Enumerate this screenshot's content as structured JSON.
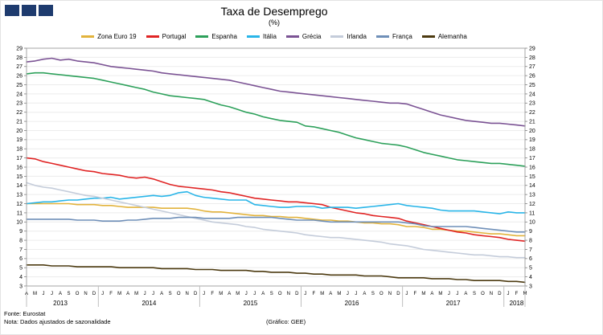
{
  "header": {
    "logo_squares": 3,
    "logo_color": "#1E3B6E"
  },
  "footer": {
    "source": "Fonte: Eurostat",
    "note": "Nota: Dados ajustados de sazonalidade",
    "credit": "(Gráfico: GEE)"
  },
  "chart_data": {
    "type": "line",
    "title": "Taxa de Desemprego",
    "subtitle": "(%)",
    "xlabel": "",
    "ylabel": "",
    "ylim": [
      3,
      29
    ],
    "ytick_step": 1,
    "grid": true,
    "legend_position": "top",
    "x_groups": [
      {
        "year": "2013",
        "months": [
          "A",
          "M",
          "J",
          "J",
          "A",
          "S",
          "O",
          "N",
          "D"
        ]
      },
      {
        "year": "2014",
        "months": [
          "J",
          "F",
          "M",
          "A",
          "M",
          "J",
          "J",
          "A",
          "S",
          "O",
          "N",
          "D"
        ]
      },
      {
        "year": "2015",
        "months": [
          "J",
          "F",
          "M",
          "A",
          "M",
          "J",
          "J",
          "A",
          "S",
          "O",
          "N",
          "D"
        ]
      },
      {
        "year": "2016",
        "months": [
          "J",
          "F",
          "M",
          "A",
          "M",
          "J",
          "J",
          "A",
          "S",
          "O",
          "N",
          "D"
        ]
      },
      {
        "year": "2017",
        "months": [
          "J",
          "F",
          "M",
          "A",
          "M",
          "J",
          "J",
          "A",
          "S",
          "O",
          "N",
          "D"
        ]
      },
      {
        "year": "2018",
        "months": [
          "J",
          "F",
          "M"
        ]
      }
    ],
    "series": [
      {
        "name": "Zona Euro 19",
        "color": "#E2B33C",
        "values": [
          12.0,
          12.0,
          12.0,
          12.0,
          12.0,
          12.0,
          11.9,
          11.9,
          11.9,
          11.8,
          11.8,
          11.7,
          11.6,
          11.6,
          11.6,
          11.6,
          11.5,
          11.5,
          11.5,
          11.5,
          11.4,
          11.2,
          11.1,
          11.1,
          11.0,
          10.9,
          10.8,
          10.7,
          10.7,
          10.6,
          10.6,
          10.5,
          10.5,
          10.4,
          10.3,
          10.2,
          10.2,
          10.1,
          10.1,
          10.0,
          9.9,
          9.9,
          9.8,
          9.8,
          9.7,
          9.5,
          9.5,
          9.4,
          9.2,
          9.2,
          9.1,
          9.0,
          9.0,
          8.9,
          8.8,
          8.7,
          8.7,
          8.6,
          8.5,
          8.5
        ]
      },
      {
        "name": "Portugal",
        "color": "#E02424",
        "values": [
          17.0,
          16.9,
          16.6,
          16.4,
          16.2,
          16.0,
          15.8,
          15.6,
          15.5,
          15.3,
          15.2,
          15.1,
          14.9,
          14.8,
          14.9,
          14.7,
          14.4,
          14.1,
          13.9,
          13.8,
          13.7,
          13.6,
          13.5,
          13.3,
          13.2,
          13.0,
          12.8,
          12.6,
          12.5,
          12.4,
          12.3,
          12.2,
          12.2,
          12.1,
          12.0,
          11.9,
          11.6,
          11.4,
          11.2,
          11.0,
          10.9,
          10.7,
          10.6,
          10.5,
          10.4,
          10.1,
          9.9,
          9.7,
          9.5,
          9.3,
          9.1,
          8.9,
          8.8,
          8.6,
          8.5,
          8.4,
          8.3,
          8.1,
          8.0,
          7.9
        ]
      },
      {
        "name": "Espanha",
        "color": "#2CA05A",
        "values": [
          26.2,
          26.3,
          26.3,
          26.2,
          26.1,
          26.0,
          25.9,
          25.8,
          25.7,
          25.5,
          25.3,
          25.1,
          24.9,
          24.7,
          24.5,
          24.2,
          24.0,
          23.8,
          23.7,
          23.6,
          23.5,
          23.4,
          23.1,
          22.8,
          22.6,
          22.3,
          22.0,
          21.8,
          21.5,
          21.3,
          21.1,
          21.0,
          20.9,
          20.5,
          20.4,
          20.2,
          20.0,
          19.8,
          19.5,
          19.2,
          19.0,
          18.8,
          18.6,
          18.5,
          18.4,
          18.2,
          17.9,
          17.6,
          17.4,
          17.2,
          17.0,
          16.8,
          16.7,
          16.6,
          16.5,
          16.4,
          16.4,
          16.3,
          16.2,
          16.1
        ]
      },
      {
        "name": "Itália",
        "color": "#29B5E8",
        "values": [
          12.0,
          12.1,
          12.2,
          12.2,
          12.3,
          12.4,
          12.4,
          12.5,
          12.6,
          12.6,
          12.7,
          12.5,
          12.6,
          12.7,
          12.8,
          12.9,
          12.8,
          12.9,
          13.2,
          13.3,
          12.9,
          12.7,
          12.6,
          12.5,
          12.4,
          12.4,
          12.4,
          11.9,
          11.8,
          11.7,
          11.6,
          11.6,
          11.7,
          11.7,
          11.7,
          11.5,
          11.6,
          11.6,
          11.6,
          11.5,
          11.6,
          11.7,
          11.8,
          11.9,
          12.0,
          11.8,
          11.7,
          11.6,
          11.5,
          11.3,
          11.2,
          11.2,
          11.2,
          11.2,
          11.1,
          11.0,
          10.9,
          11.1,
          11.0,
          11.0
        ]
      },
      {
        "name": "Grécia",
        "color": "#7B5394",
        "values": [
          27.5,
          27.6,
          27.8,
          27.9,
          27.7,
          27.8,
          27.6,
          27.5,
          27.4,
          27.2,
          27.0,
          26.9,
          26.8,
          26.7,
          26.6,
          26.5,
          26.3,
          26.2,
          26.1,
          26.0,
          25.9,
          25.8,
          25.7,
          25.6,
          25.5,
          25.3,
          25.1,
          24.9,
          24.7,
          24.5,
          24.3,
          24.2,
          24.1,
          24.0,
          23.9,
          23.8,
          23.7,
          23.6,
          23.5,
          23.4,
          23.3,
          23.2,
          23.1,
          23.0,
          23.0,
          22.9,
          22.6,
          22.3,
          22.0,
          21.7,
          21.5,
          21.3,
          21.1,
          21.0,
          20.9,
          20.8,
          20.8,
          20.7,
          20.6,
          20.5
        ]
      },
      {
        "name": "Irlanda",
        "color": "#C4CCDA",
        "values": [
          14.3,
          14.0,
          13.8,
          13.7,
          13.5,
          13.3,
          13.1,
          12.9,
          12.8,
          12.6,
          12.4,
          12.2,
          12.0,
          11.8,
          11.6,
          11.4,
          11.2,
          11.0,
          10.8,
          10.6,
          10.4,
          10.2,
          10.0,
          9.9,
          9.8,
          9.7,
          9.5,
          9.4,
          9.2,
          9.1,
          9.0,
          8.9,
          8.8,
          8.6,
          8.5,
          8.4,
          8.3,
          8.3,
          8.2,
          8.1,
          8.0,
          7.9,
          7.8,
          7.6,
          7.5,
          7.4,
          7.2,
          7.0,
          6.9,
          6.8,
          6.7,
          6.6,
          6.5,
          6.4,
          6.4,
          6.3,
          6.2,
          6.2,
          6.1,
          6.1
        ]
      },
      {
        "name": "França",
        "color": "#6F8FB8",
        "values": [
          10.3,
          10.3,
          10.3,
          10.3,
          10.3,
          10.3,
          10.2,
          10.2,
          10.2,
          10.1,
          10.1,
          10.1,
          10.2,
          10.2,
          10.3,
          10.4,
          10.4,
          10.4,
          10.5,
          10.5,
          10.5,
          10.4,
          10.4,
          10.4,
          10.4,
          10.5,
          10.5,
          10.5,
          10.5,
          10.5,
          10.4,
          10.3,
          10.2,
          10.2,
          10.2,
          10.1,
          10.0,
          10.0,
          10.0,
          10.0,
          10.0,
          10.0,
          10.0,
          10.0,
          10.0,
          9.9,
          9.8,
          9.6,
          9.5,
          9.5,
          9.5,
          9.5,
          9.5,
          9.4,
          9.3,
          9.2,
          9.1,
          9.0,
          8.9,
          8.9
        ]
      },
      {
        "name": "Alemanha",
        "color": "#4C3A10",
        "values": [
          5.3,
          5.3,
          5.3,
          5.2,
          5.2,
          5.2,
          5.1,
          5.1,
          5.1,
          5.1,
          5.1,
          5.0,
          5.0,
          5.0,
          5.0,
          5.0,
          4.9,
          4.9,
          4.9,
          4.9,
          4.8,
          4.8,
          4.8,
          4.7,
          4.7,
          4.7,
          4.7,
          4.6,
          4.6,
          4.5,
          4.5,
          4.5,
          4.4,
          4.4,
          4.3,
          4.3,
          4.2,
          4.2,
          4.2,
          4.2,
          4.1,
          4.1,
          4.1,
          4.0,
          3.9,
          3.9,
          3.9,
          3.9,
          3.8,
          3.8,
          3.8,
          3.7,
          3.7,
          3.6,
          3.6,
          3.6,
          3.6,
          3.5,
          3.5,
          3.4
        ]
      }
    ]
  }
}
